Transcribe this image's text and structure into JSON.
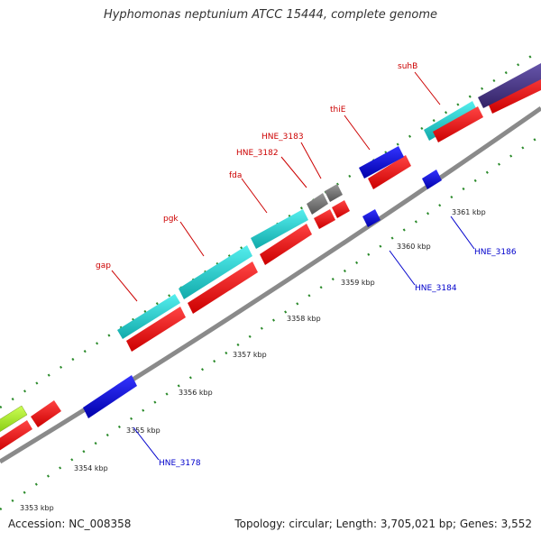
{
  "title": "Hyphomonas neptunium ATCC 15444, complete genome",
  "accession": "Accession: NC_008358",
  "summary": "Topology: circular; Length: 3,705,021 bp; Genes: 3,552",
  "colors": {
    "backbone": "#8a8a8a",
    "tick": "#2a8a2a",
    "label_forward": "#cc0000",
    "label_reverse": "#0000cc",
    "cds_forward": "#ee0000",
    "cds_reverse": "#0000dd",
    "rna": "#22cccc",
    "gray": "#777777",
    "green": "#aaee22",
    "purple": "#443388"
  },
  "kbp_ticks": [
    "3353 kbp",
    "3354 kbp",
    "3355 kbp",
    "3356 kbp",
    "3357 kbp",
    "3358 kbp",
    "3359 kbp",
    "3360 kbp",
    "3361 kbp"
  ],
  "labels": {
    "gap": "gap",
    "pgk": "pgk",
    "fda": "fda",
    "hne3182": "HNE_3182",
    "hne3183": "HNE_3183",
    "thiE": "thiE",
    "suhB": "suhB",
    "hne3178": "HNE_3178",
    "hne3184": "HNE_3184",
    "hne3186": "HNE_3186"
  }
}
